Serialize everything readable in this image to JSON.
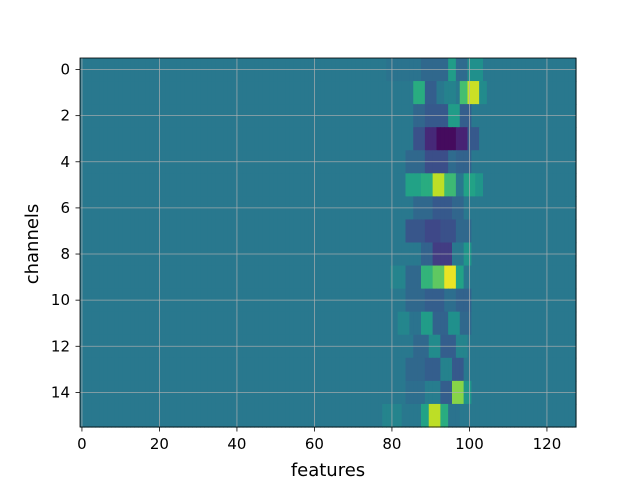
{
  "chart_data": {
    "type": "heatmap",
    "title": "",
    "xlabel": "features",
    "ylabel": "channels",
    "colormap": "viridis",
    "grid": true,
    "colors": {
      "grid": "#b0b0b0",
      "axis": "#000000",
      "background": "#ffffff"
    },
    "x_ticks": [
      0,
      20,
      40,
      60,
      80,
      100,
      120
    ],
    "y_ticks": [
      0,
      2,
      4,
      6,
      8,
      10,
      12,
      14
    ],
    "xlim": [
      -0.5,
      127.5
    ],
    "ylim": [
      15.5,
      -0.5
    ],
    "n_rows": 16,
    "n_cols": 128,
    "value_range": [
      0,
      1
    ],
    "baseline": 0.4,
    "features": [
      {
        "row": 0,
        "segments": [
          [
            79,
            87,
            0.38
          ],
          [
            88,
            94,
            0.34
          ],
          [
            95,
            96,
            0.55
          ],
          [
            97,
            99,
            0.35
          ],
          [
            100,
            103,
            0.5
          ]
        ]
      },
      {
        "row": 1,
        "segments": [
          [
            86,
            88,
            0.62
          ],
          [
            89,
            91,
            0.3
          ],
          [
            94,
            96,
            0.44
          ],
          [
            98,
            99,
            0.7
          ],
          [
            100,
            102,
            0.92
          ],
          [
            103,
            104,
            0.48
          ]
        ]
      },
      {
        "row": 2,
        "segments": [
          [
            86,
            88,
            0.33
          ],
          [
            89,
            94,
            0.28
          ],
          [
            95,
            97,
            0.55
          ],
          [
            98,
            100,
            0.3
          ]
        ]
      },
      {
        "row": 3,
        "segments": [
          [
            86,
            88,
            0.25
          ],
          [
            89,
            91,
            0.12
          ],
          [
            92,
            96,
            0.03
          ],
          [
            97,
            99,
            0.1
          ],
          [
            100,
            102,
            0.28
          ]
        ]
      },
      {
        "row": 4,
        "segments": [
          [
            84,
            88,
            0.34
          ],
          [
            89,
            94,
            0.24
          ],
          [
            95,
            96,
            0.35
          ],
          [
            97,
            100,
            0.32
          ]
        ]
      },
      {
        "row": 5,
        "segments": [
          [
            84,
            87,
            0.58
          ],
          [
            88,
            90,
            0.62
          ],
          [
            91,
            93,
            0.9
          ],
          [
            94,
            96,
            0.68
          ],
          [
            99,
            101,
            0.58
          ],
          [
            102,
            103,
            0.52
          ]
        ]
      },
      {
        "row": 6,
        "segments": [
          [
            86,
            90,
            0.34
          ],
          [
            91,
            95,
            0.28
          ],
          [
            96,
            98,
            0.33
          ]
        ]
      },
      {
        "row": 7,
        "segments": [
          [
            84,
            88,
            0.27
          ],
          [
            89,
            92,
            0.22
          ],
          [
            93,
            96,
            0.25
          ],
          [
            97,
            100,
            0.34
          ]
        ]
      },
      {
        "row": 8,
        "segments": [
          [
            88,
            90,
            0.32
          ],
          [
            91,
            95,
            0.18
          ],
          [
            96,
            98,
            0.4
          ],
          [
            99,
            100,
            0.52
          ]
        ]
      },
      {
        "row": 9,
        "segments": [
          [
            80,
            83,
            0.45
          ],
          [
            84,
            87,
            0.34
          ],
          [
            88,
            90,
            0.65
          ],
          [
            91,
            93,
            0.75
          ],
          [
            94,
            96,
            0.97
          ],
          [
            97,
            98,
            0.58
          ]
        ]
      },
      {
        "row": 10,
        "segments": [
          [
            84,
            88,
            0.34
          ],
          [
            89,
            93,
            0.3
          ],
          [
            94,
            96,
            0.36
          ],
          [
            97,
            100,
            0.32
          ]
        ]
      },
      {
        "row": 11,
        "segments": [
          [
            82,
            84,
            0.46
          ],
          [
            85,
            87,
            0.38
          ],
          [
            88,
            90,
            0.55
          ],
          [
            91,
            94,
            0.32
          ],
          [
            95,
            97,
            0.5
          ],
          [
            98,
            100,
            0.34
          ]
        ]
      },
      {
        "row": 12,
        "segments": [
          [
            86,
            89,
            0.34
          ],
          [
            90,
            92,
            0.48
          ],
          [
            93,
            96,
            0.3
          ],
          [
            97,
            99,
            0.45
          ]
        ]
      },
      {
        "row": 13,
        "segments": [
          [
            84,
            88,
            0.34
          ],
          [
            89,
            92,
            0.3
          ],
          [
            93,
            95,
            0.44
          ],
          [
            96,
            98,
            0.28
          ]
        ]
      },
      {
        "row": 14,
        "segments": [
          [
            84,
            88,
            0.36
          ],
          [
            89,
            92,
            0.42
          ],
          [
            93,
            95,
            0.3
          ],
          [
            96,
            98,
            0.82
          ],
          [
            99,
            100,
            0.52
          ]
        ]
      },
      {
        "row": 15,
        "segments": [
          [
            78,
            82,
            0.45
          ],
          [
            83,
            87,
            0.4
          ],
          [
            88,
            89,
            0.58
          ],
          [
            90,
            92,
            0.9
          ],
          [
            93,
            94,
            0.62
          ],
          [
            95,
            97,
            0.38
          ]
        ]
      }
    ]
  }
}
